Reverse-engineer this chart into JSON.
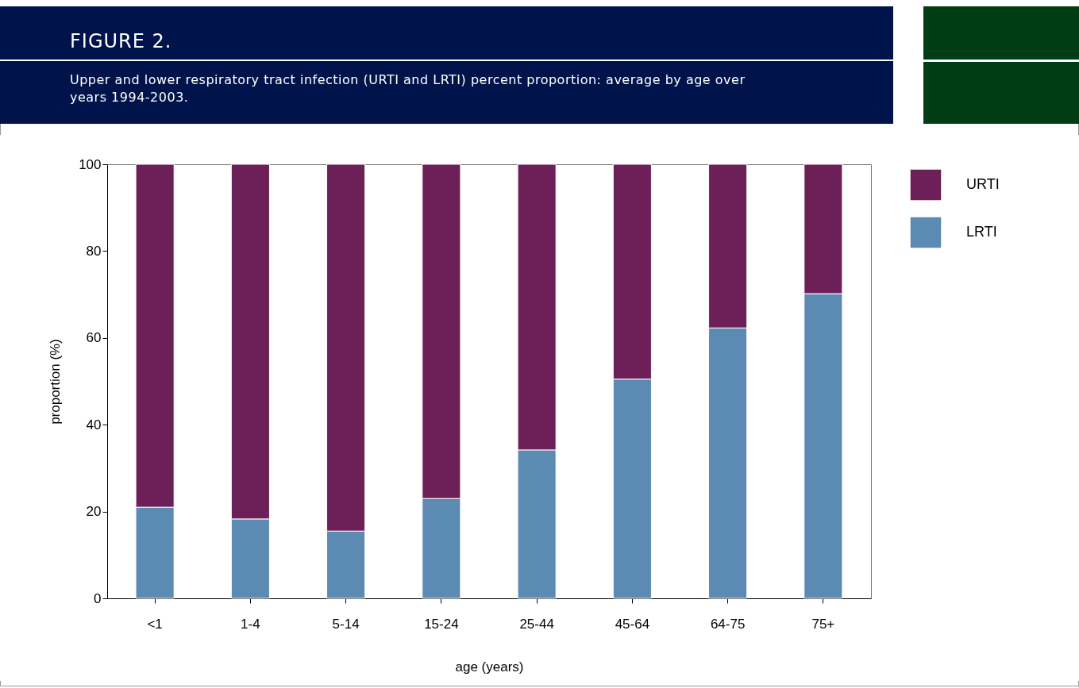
{
  "chart_data": {
    "type": "bar",
    "title": "FIGURE 2.",
    "subtitle": "Upper and lower respiratory tract infection (URTI and LRTI) percent proportion: average by age over years 1994-2003.",
    "xlabel": "age (years)",
    "ylabel": "proportion (%)",
    "categories": [
      "<1",
      "1-4",
      "5-14",
      "15-24",
      "25-44",
      "45-64",
      "64-75",
      "75+"
    ],
    "series": [
      {
        "name": "LRTI",
        "color": "#5b8ab3",
        "values": [
          21.0,
          18.3,
          15.5,
          23.0,
          34.2,
          50.5,
          62.3,
          70.2
        ]
      },
      {
        "name": "URTI",
        "color": "#6d2058",
        "values": [
          79.0,
          81.7,
          84.5,
          77.0,
          65.8,
          49.5,
          37.7,
          29.8
        ]
      }
    ],
    "stacked": true,
    "ylim": [
      0,
      100
    ],
    "yticks": [
      0,
      20,
      40,
      60,
      80,
      100
    ],
    "grid": false,
    "legend": "top right"
  }
}
